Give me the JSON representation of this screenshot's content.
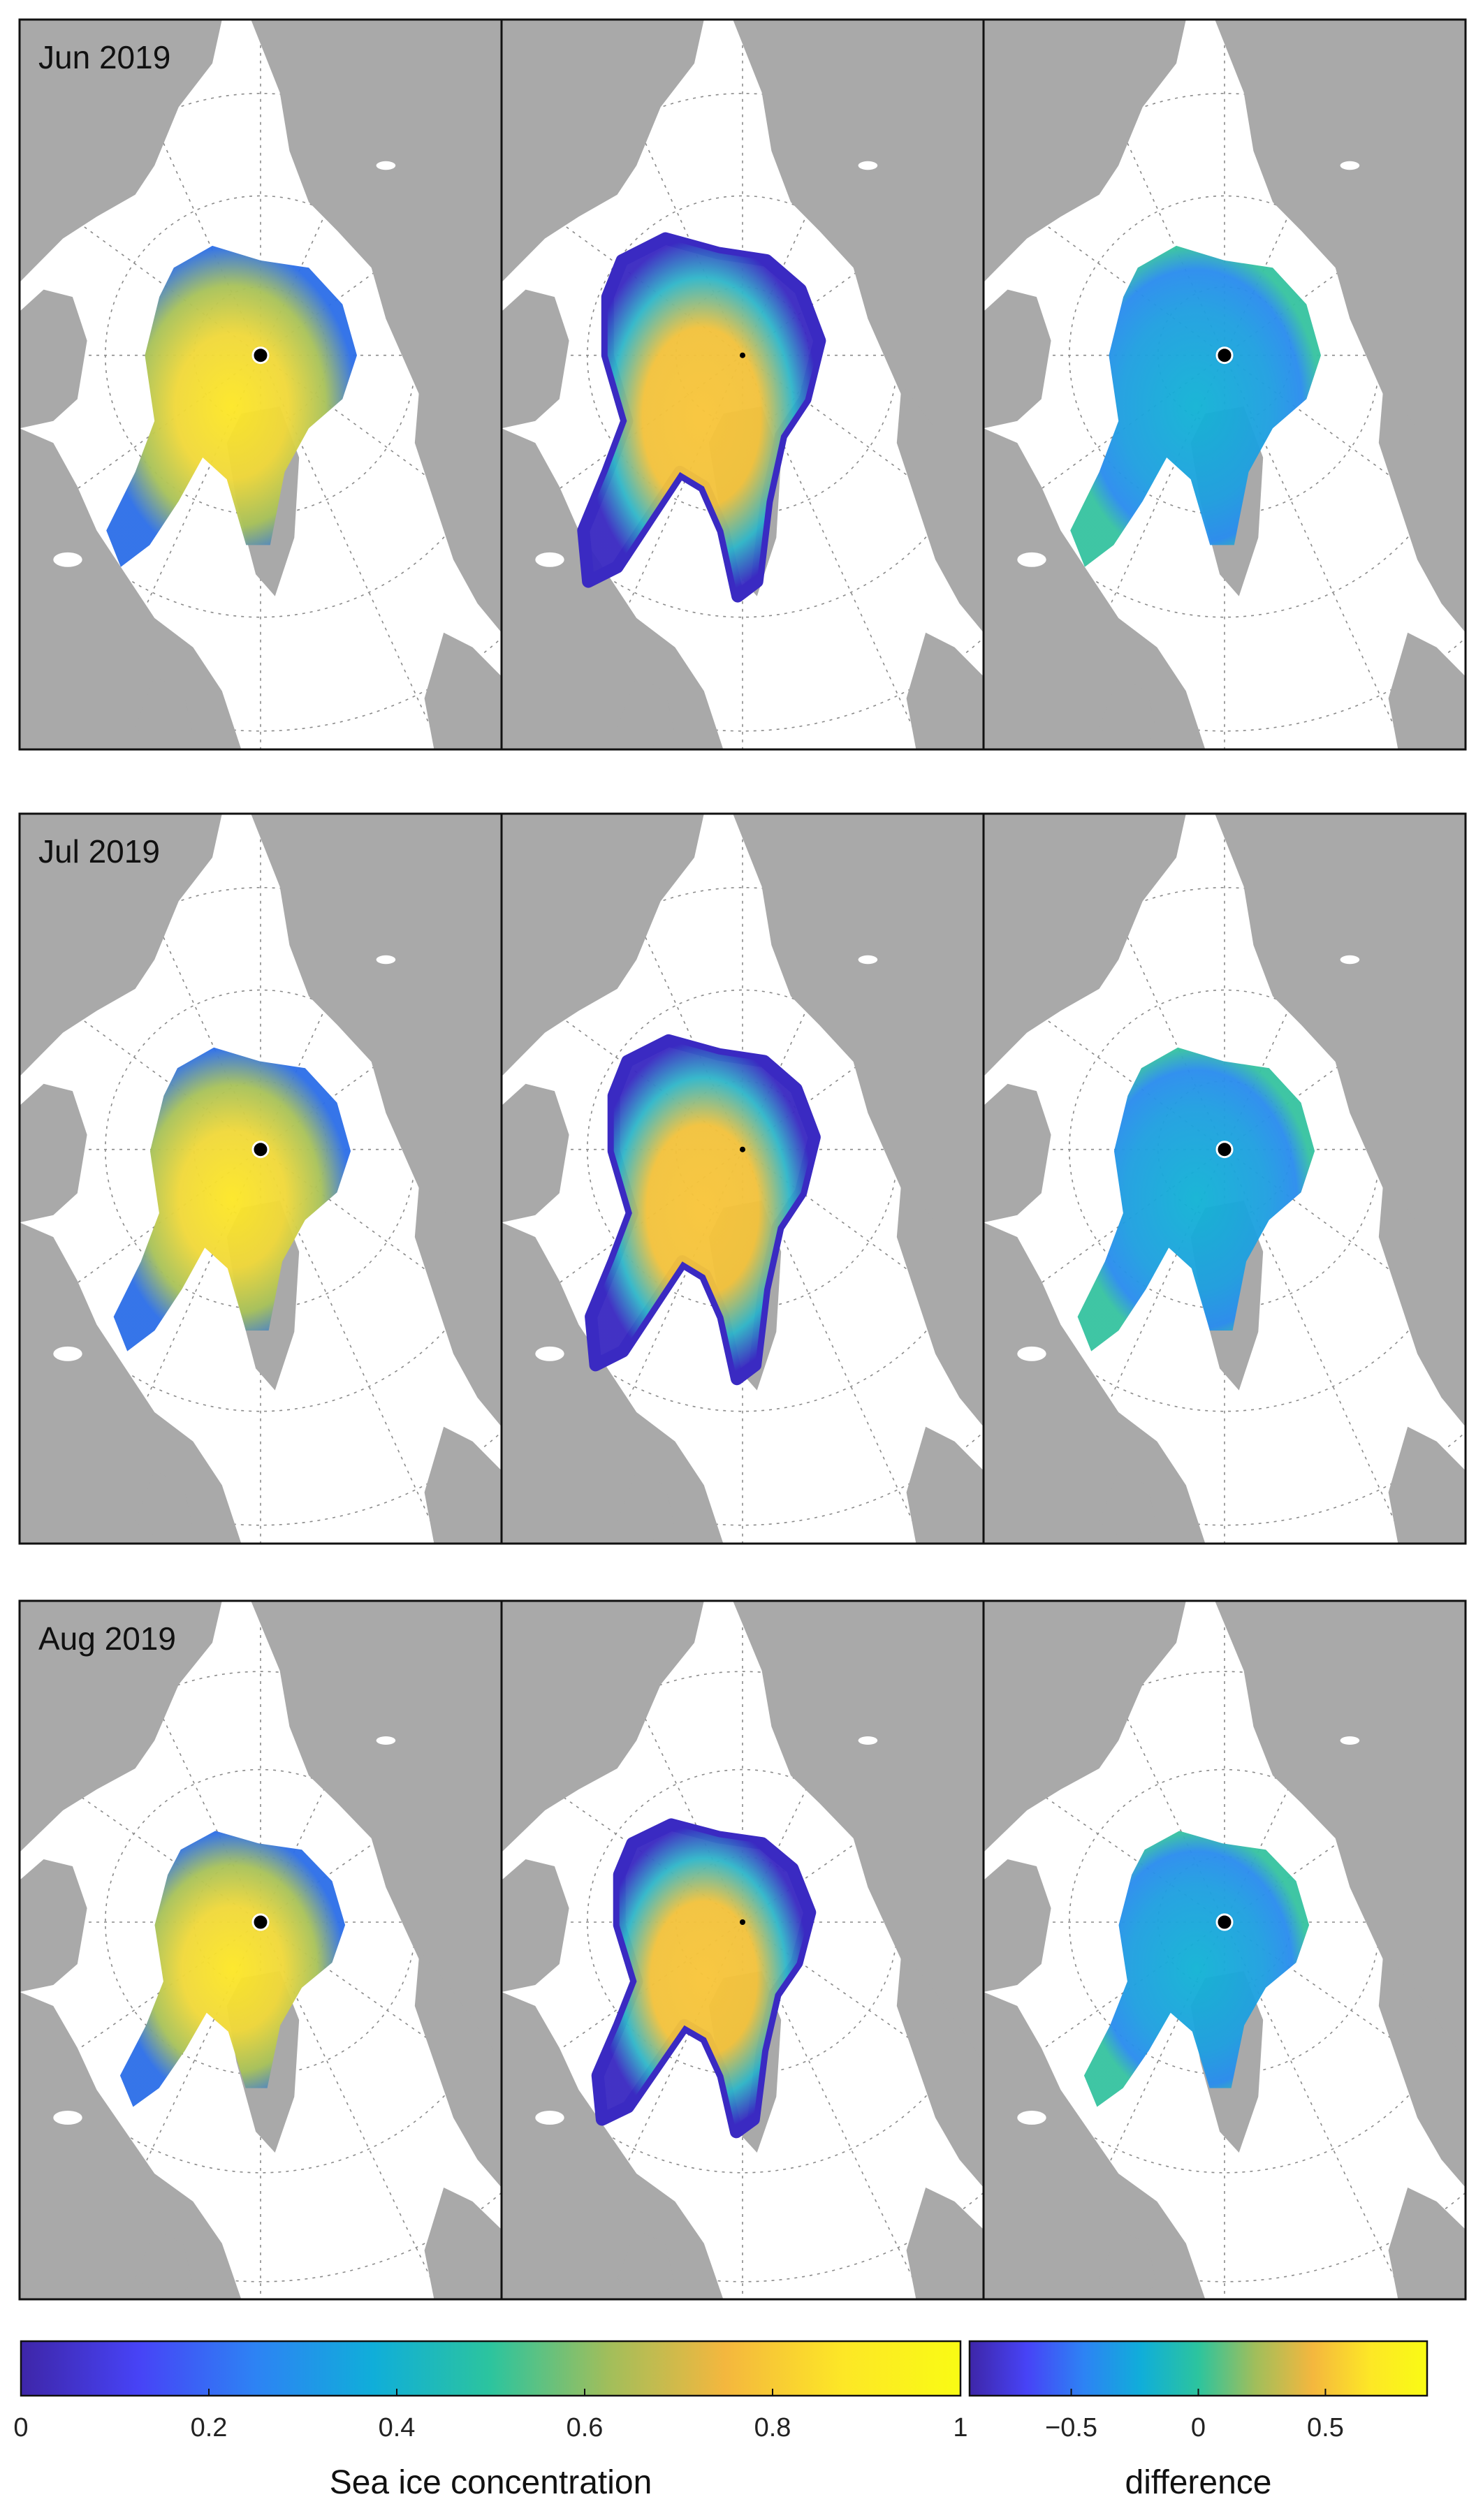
{
  "rows": [
    {
      "label": "Jun 2019",
      "ice_extent": 1.0,
      "fill": [
        0.85,
        0.85,
        0.15
      ]
    },
    {
      "label": "Jul 2019",
      "ice_extent": 0.82,
      "fill": [
        0.72,
        0.75,
        0.1
      ]
    },
    {
      "label": "Aug 2019",
      "ice_extent": 0.66,
      "fill": [
        0.55,
        0.7,
        0.05
      ]
    }
  ],
  "colorbars": [
    {
      "title": "Sea ice concentration",
      "colors": [
        "#3e26a8",
        "#4743f6",
        "#2d83f4",
        "#10aed9",
        "#2cc49e",
        "#a1be5b",
        "#f4b73e",
        "#fde726",
        "#f9fb14"
      ],
      "ticks": [
        {
          "value": 0,
          "label": "0"
        },
        {
          "value": 0.2,
          "label": "0.2"
        },
        {
          "value": 0.4,
          "label": "0.4"
        },
        {
          "value": 0.6,
          "label": "0.6"
        },
        {
          "value": 0.8,
          "label": "0.8"
        },
        {
          "value": 1,
          "label": "1"
        }
      ],
      "range": [
        0,
        1
      ]
    },
    {
      "title": "difference",
      "colors": [
        "#3e26a8",
        "#4743f6",
        "#2d83f4",
        "#10aed9",
        "#2cc49e",
        "#a1be5b",
        "#f4b73e",
        "#fde726",
        "#f9fb14"
      ],
      "ticks": [
        {
          "value": -0.5,
          "label": "−0.5"
        },
        {
          "value": 0,
          "label": "0"
        },
        {
          "value": 0.5,
          "label": "0.5"
        }
      ],
      "range": [
        -0.9,
        0.9
      ]
    }
  ]
}
